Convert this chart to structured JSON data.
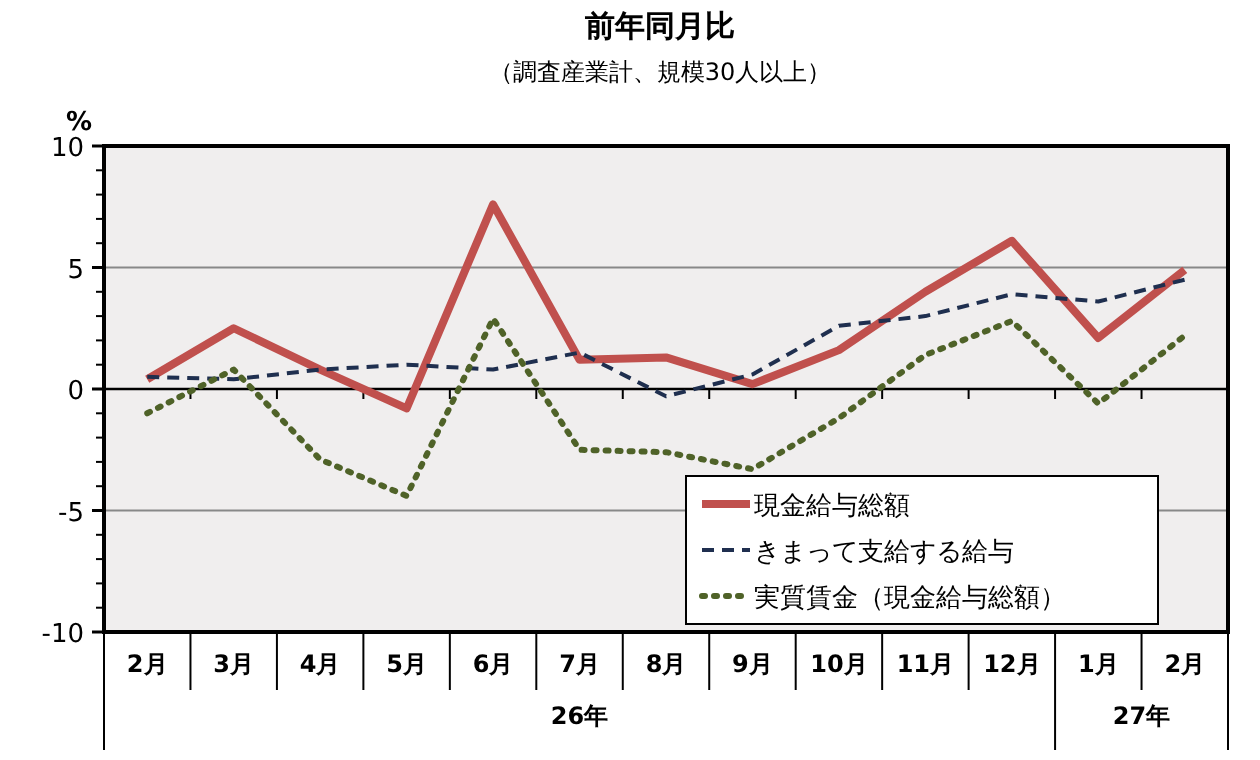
{
  "chart_data": {
    "type": "line",
    "title": "前年同月比",
    "subtitle": "（調査産業計、規模30人以上）",
    "ylabel": "%",
    "categories": [
      "2月",
      "3月",
      "4月",
      "5月",
      "6月",
      "7月",
      "8月",
      "9月",
      "10月",
      "11月",
      "12月",
      "1月",
      "2月"
    ],
    "series": [
      {
        "name": "現金給与総額",
        "color": "#c0504d",
        "line_style": "solid",
        "values": [
          0.4,
          2.5,
          0.8,
          -0.8,
          7.6,
          1.2,
          1.3,
          0.2,
          1.6,
          4.0,
          6.1,
          2.1,
          4.9
        ]
      },
      {
        "name": "きまって支給する給与",
        "color": "#1f2f4f",
        "line_style": "dashed",
        "values": [
          0.5,
          0.4,
          0.8,
          1.0,
          0.8,
          1.5,
          -0.3,
          0.6,
          2.6,
          3.0,
          3.9,
          3.6,
          4.5
        ]
      },
      {
        "name": "実質賃金（現金給与総額）",
        "color": "#4f6228",
        "line_style": "dotted",
        "values": [
          -1.0,
          0.8,
          -2.9,
          -4.4,
          2.9,
          -2.5,
          -2.6,
          -3.3,
          -1.2,
          1.4,
          2.8,
          -0.6,
          2.2
        ]
      }
    ],
    "ylim": [
      -10,
      10
    ],
    "yticks": [
      -10,
      -5,
      0,
      5,
      10
    ],
    "grid": "y",
    "legend": "bottom right",
    "marker": "none",
    "annotations": [
      "26年",
      "27年"
    ]
  }
}
